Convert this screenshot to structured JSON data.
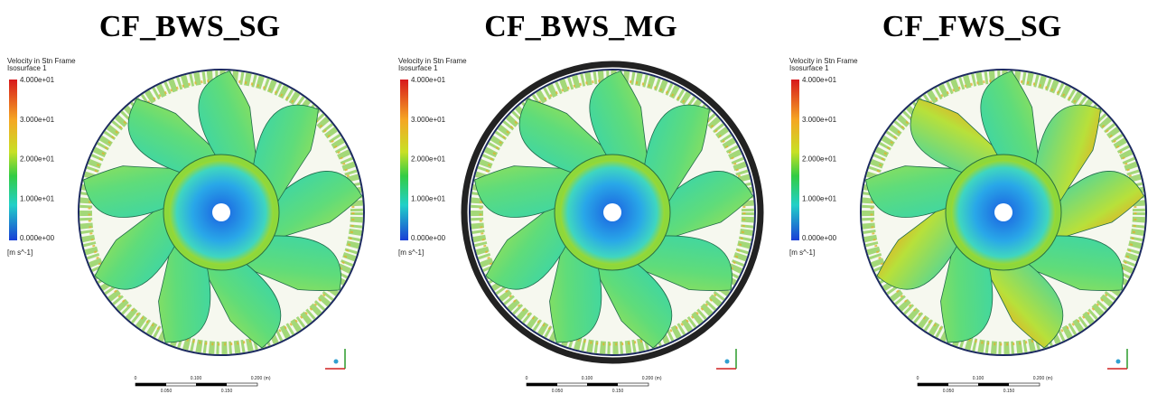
{
  "panels": [
    {
      "title": "CF_BWS_SG",
      "legend": {
        "title": "Velocity in Stn Frame",
        "subtitle": "Isosurface 1",
        "ticks": [
          "4.000e+01",
          "3.000e+01",
          "2.000e+01",
          "1.000e+01",
          "0.000e+00"
        ],
        "units": "[m s^-1]"
      },
      "scale": {
        "top": [
          "0",
          "0.100",
          "0.200"
        ],
        "unit": "(m)",
        "bottom": [
          "0.050",
          "0.150"
        ]
      }
    },
    {
      "title": "CF_BWS_MG",
      "legend": {
        "title": "Velocity in Stn Frame",
        "subtitle": "Isosurface 1",
        "ticks": [
          "4.000e+01",
          "3.000e+01",
          "2.000e+01",
          "1.000e+01",
          "0.000e+00"
        ],
        "units": "[m s^-1]"
      },
      "scale": {
        "top": [
          "0",
          "0.100",
          "0.200"
        ],
        "unit": "(m)",
        "bottom": [
          "0.050",
          "0.150"
        ]
      }
    },
    {
      "title": "CF_FWS_SG",
      "legend": {
        "title": "Velocity in Stn Frame",
        "subtitle": "Isosurface 1",
        "ticks": [
          "4.000e+01",
          "3.000e+01",
          "2.000e+01",
          "1.000e+01",
          "0.000e+00"
        ],
        "units": "[m s^-1]"
      },
      "scale": {
        "top": [
          "0",
          "0.100",
          "0.200"
        ],
        "unit": "(m)",
        "bottom": [
          "0.050",
          "0.150"
        ]
      }
    }
  ]
}
